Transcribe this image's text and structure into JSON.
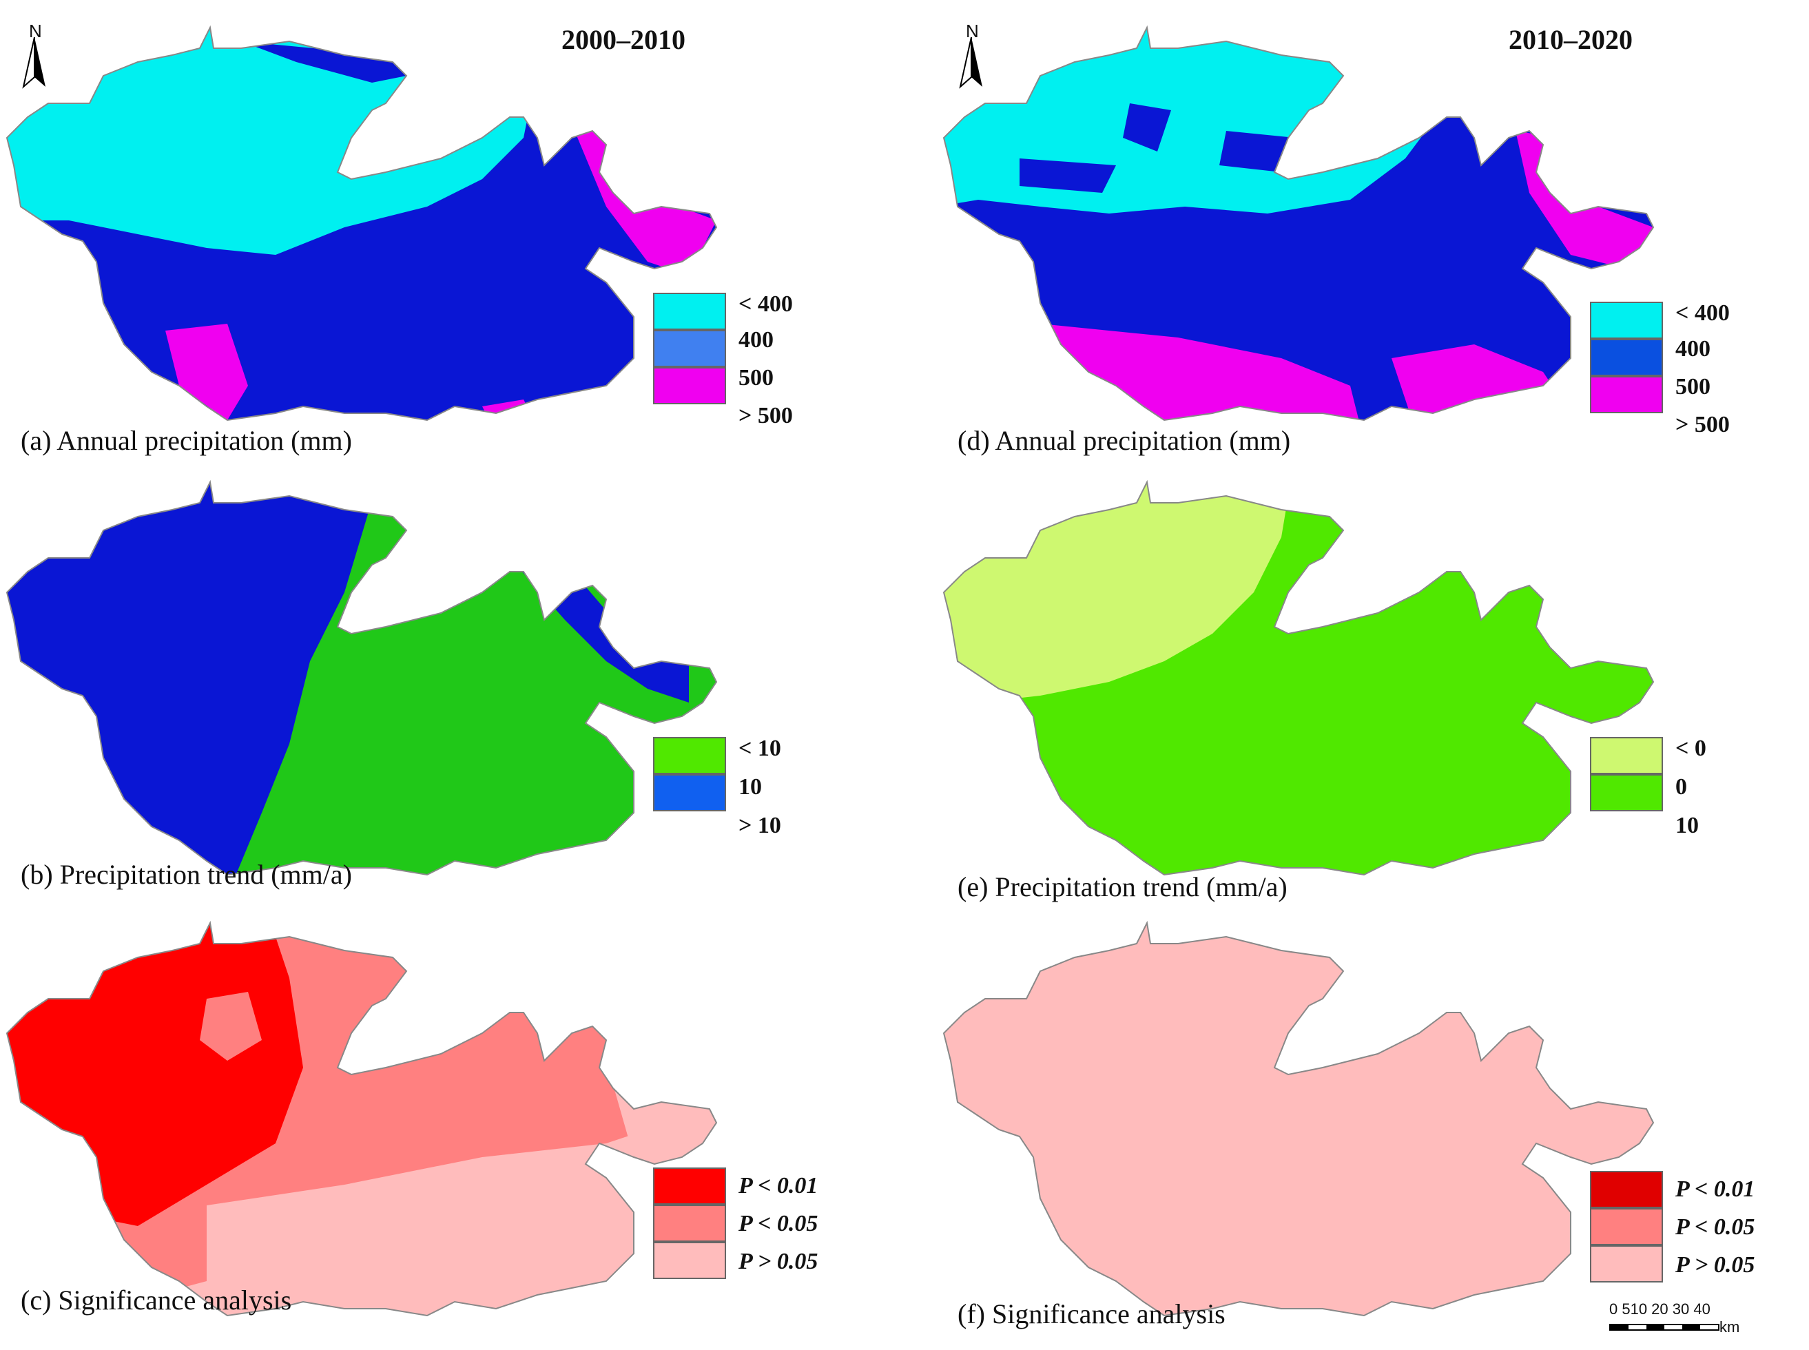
{
  "periods": {
    "left": "2000–2010",
    "right": "2010–2020"
  },
  "north_label": "N",
  "colors": {
    "cyan": "#00f0f0",
    "navy": "#0a16d4",
    "magenta": "#f000f0",
    "blue_mid": "#4080f0",
    "green": "#20c818",
    "bright_green": "#50e800",
    "light_lime": "#cef870",
    "sig_red": "#ff0000",
    "sig_salmon": "#ff8080",
    "sig_pink": "#ffbcbc",
    "outline": "#888888"
  },
  "panels": [
    {
      "id": "a",
      "caption": "(a) Annual precipitation (mm)",
      "legend": [
        {
          "label": "< 400",
          "color": "#00f0f0"
        },
        {
          "label": "400",
          "color": "#4080f0"
        },
        {
          "label": "500",
          "color": "#f000f0"
        },
        {
          "label": "> 500",
          "color": "#f000f0"
        }
      ]
    },
    {
      "id": "b",
      "caption": "(b)  Precipitation trend (mm/a)",
      "legend": [
        {
          "label": "< 10",
          "color": "#50e800"
        },
        {
          "label": "10",
          "color": "#1060f0"
        },
        {
          "label": "> 10",
          "color": "#1060f0"
        }
      ]
    },
    {
      "id": "c",
      "caption": "(c) Significance analysis",
      "legend": [
        {
          "label": "P < 0.01",
          "color": "#ff0000"
        },
        {
          "label": "P < 0.05",
          "color": "#ff8080"
        },
        {
          "label": "P > 0.05",
          "color": "#ffbcbc"
        }
      ]
    },
    {
      "id": "d",
      "caption": "(d) Annual precipitation (mm)",
      "legend": [
        {
          "label": "< 400",
          "color": "#00f0f0"
        },
        {
          "label": "400",
          "color": "#0a50e0"
        },
        {
          "label": "500",
          "color": "#f000f0"
        },
        {
          "label": "> 500",
          "color": "#f000f0"
        }
      ]
    },
    {
      "id": "e",
      "caption": "(e) Precipitation trend (mm/a)",
      "legend": [
        {
          "label": "< 0",
          "color": "#cef870"
        },
        {
          "label": "0",
          "color": "#50e800"
        },
        {
          "label": "10",
          "color": "#50e800"
        }
      ]
    },
    {
      "id": "f",
      "caption": "(f)  Significance analysis",
      "legend": [
        {
          "label": "P < 0.01",
          "color": "#e00000"
        },
        {
          "label": "P < 0.05",
          "color": "#ff8080"
        },
        {
          "label": "P > 0.05",
          "color": "#ffbcbc"
        }
      ]
    }
  ],
  "scale_bar": {
    "ticks": "0 510 20 30 40",
    "unit": "km"
  }
}
